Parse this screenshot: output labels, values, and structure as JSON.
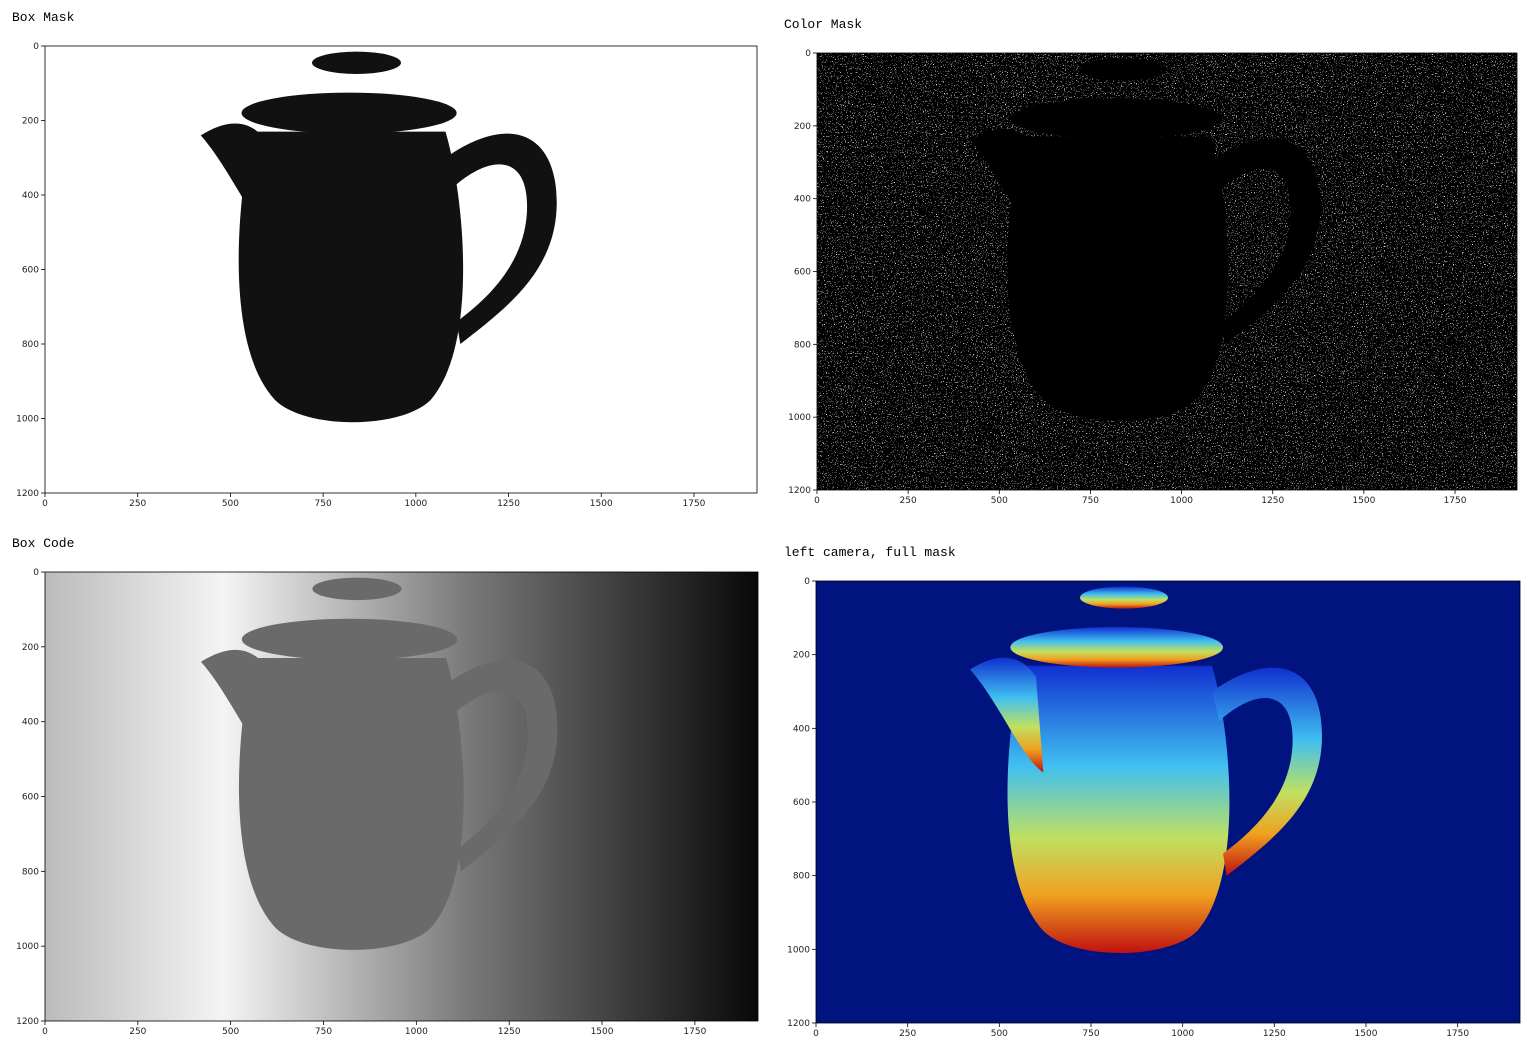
{
  "chart_data": [
    {
      "type": "image",
      "title": "Box Mask",
      "xlim": [
        0,
        1920
      ],
      "ylim": [
        0,
        1200
      ],
      "y_inverted": true,
      "xticks": [
        0,
        250,
        500,
        750,
        1000,
        1250,
        1500,
        1750
      ],
      "yticks": [
        0,
        200,
        400,
        600,
        800,
        1000,
        1200
      ]
    },
    {
      "type": "image",
      "title": "Color Mask",
      "xlim": [
        0,
        1920
      ],
      "ylim": [
        0,
        1200
      ],
      "y_inverted": true,
      "xticks": [
        0,
        250,
        500,
        750,
        1000,
        1250,
        1500,
        1750
      ],
      "yticks": [
        0,
        200,
        400,
        600,
        800,
        1000,
        1200
      ]
    },
    {
      "type": "image",
      "title": "Box Code",
      "xlim": [
        0,
        1920
      ],
      "ylim": [
        0,
        1200
      ],
      "y_inverted": true,
      "xticks": [
        0,
        250,
        500,
        750,
        1000,
        1250,
        1500,
        1750
      ],
      "yticks": [
        0,
        200,
        400,
        600,
        800,
        1000,
        1200
      ]
    },
    {
      "type": "image",
      "title": "left camera, full mask",
      "xlim": [
        0,
        1920
      ],
      "ylim": [
        0,
        1200
      ],
      "y_inverted": true,
      "xticks": [
        0,
        250,
        500,
        750,
        1000,
        1250,
        1500,
        1750
      ],
      "yticks": [
        0,
        200,
        400,
        600,
        800,
        1000,
        1200
      ]
    }
  ]
}
